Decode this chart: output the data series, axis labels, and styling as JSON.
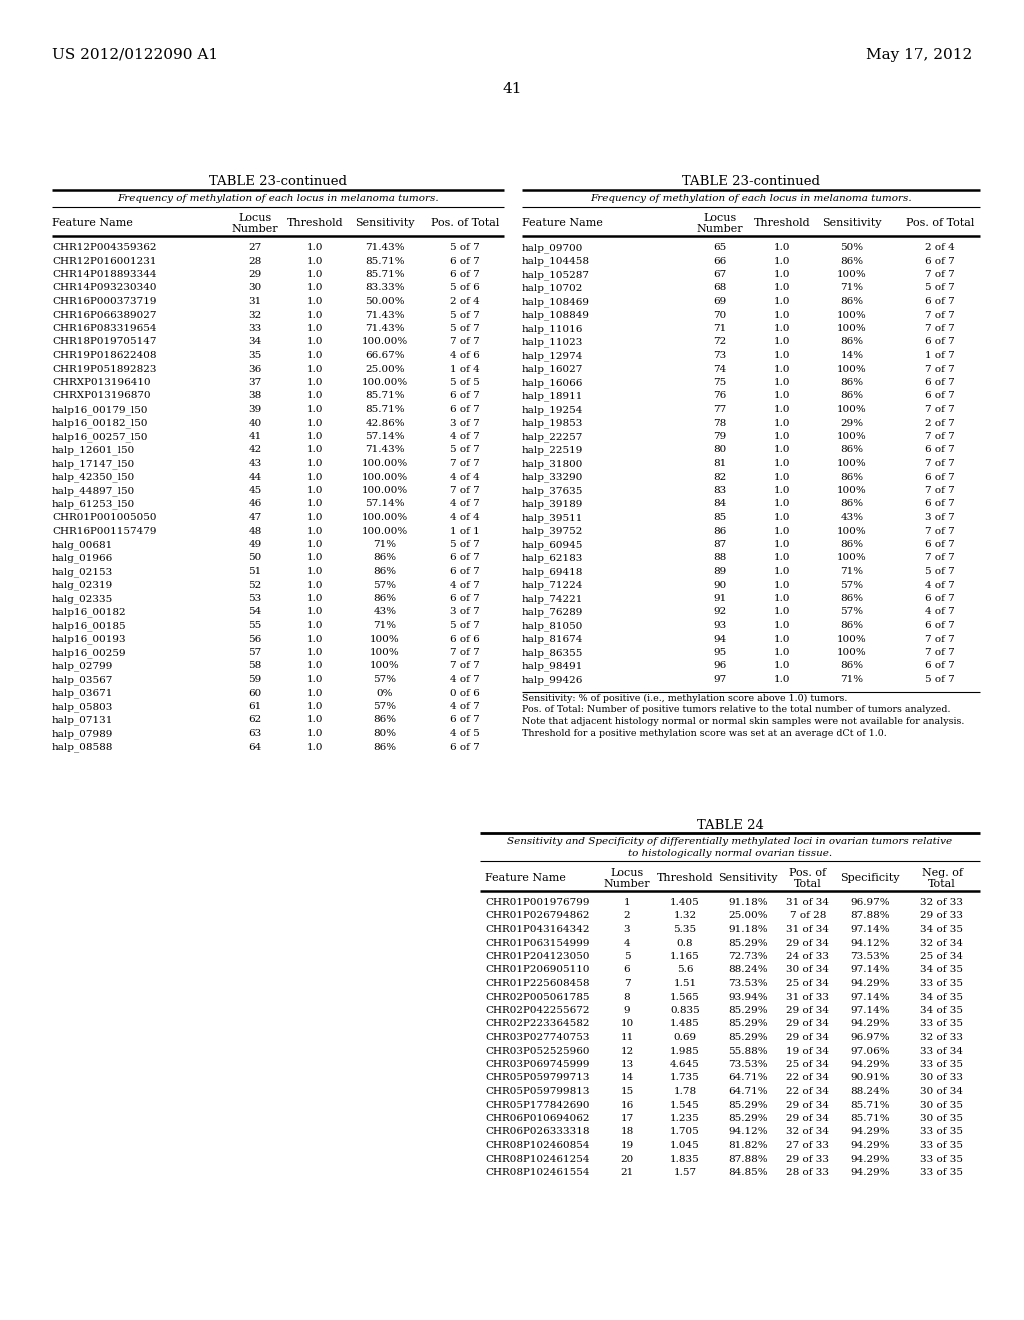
{
  "header_left": "US 2012/0122090 A1",
  "header_right": "May 17, 2012",
  "page_number": "41",
  "table23_title": "TABLE 23-continued",
  "table23_subtitle": "Frequency of methylation of each locus in melanoma tumors.",
  "table23_left": [
    [
      "CHR12P004359362",
      "27",
      "1.0",
      "71.43%",
      "5 of 7"
    ],
    [
      "CHR12P016001231",
      "28",
      "1.0",
      "85.71%",
      "6 of 7"
    ],
    [
      "CHR14P018893344",
      "29",
      "1.0",
      "85.71%",
      "6 of 7"
    ],
    [
      "CHR14P093230340",
      "30",
      "1.0",
      "83.33%",
      "5 of 6"
    ],
    [
      "CHR16P000373719",
      "31",
      "1.0",
      "50.00%",
      "2 of 4"
    ],
    [
      "CHR16P066389027",
      "32",
      "1.0",
      "71.43%",
      "5 of 7"
    ],
    [
      "CHR16P083319654",
      "33",
      "1.0",
      "71.43%",
      "5 of 7"
    ],
    [
      "CHR18P019705147",
      "34",
      "1.0",
      "100.00%",
      "7 of 7"
    ],
    [
      "CHR19P018622408",
      "35",
      "1.0",
      "66.67%",
      "4 of 6"
    ],
    [
      "CHR19P051892823",
      "36",
      "1.0",
      "25.00%",
      "1 of 4"
    ],
    [
      "CHRXP013196410",
      "37",
      "1.0",
      "100.00%",
      "5 of 5"
    ],
    [
      "CHRXP013196870",
      "38",
      "1.0",
      "85.71%",
      "6 of 7"
    ],
    [
      "halp16_00179_l50",
      "39",
      "1.0",
      "85.71%",
      "6 of 7"
    ],
    [
      "halp16_00182_l50",
      "40",
      "1.0",
      "42.86%",
      "3 of 7"
    ],
    [
      "halp16_00257_l50",
      "41",
      "1.0",
      "57.14%",
      "4 of 7"
    ],
    [
      "halp_12601_l50",
      "42",
      "1.0",
      "71.43%",
      "5 of 7"
    ],
    [
      "halp_17147_l50",
      "43",
      "1.0",
      "100.00%",
      "7 of 7"
    ],
    [
      "halp_42350_l50",
      "44",
      "1.0",
      "100.00%",
      "4 of 4"
    ],
    [
      "halp_44897_l50",
      "45",
      "1.0",
      "100.00%",
      "7 of 7"
    ],
    [
      "halp_61253_l50",
      "46",
      "1.0",
      "57.14%",
      "4 of 7"
    ],
    [
      "CHR01P001005050",
      "47",
      "1.0",
      "100.00%",
      "4 of 4"
    ],
    [
      "CHR16P001157479",
      "48",
      "1.0",
      "100.00%",
      "1 of 1"
    ],
    [
      "halg_00681",
      "49",
      "1.0",
      "71%",
      "5 of 7"
    ],
    [
      "halg_01966",
      "50",
      "1.0",
      "86%",
      "6 of 7"
    ],
    [
      "halg_02153",
      "51",
      "1.0",
      "86%",
      "6 of 7"
    ],
    [
      "halg_02319",
      "52",
      "1.0",
      "57%",
      "4 of 7"
    ],
    [
      "halg_02335",
      "53",
      "1.0",
      "86%",
      "6 of 7"
    ],
    [
      "halp16_00182",
      "54",
      "1.0",
      "43%",
      "3 of 7"
    ],
    [
      "halp16_00185",
      "55",
      "1.0",
      "71%",
      "5 of 7"
    ],
    [
      "halp16_00193",
      "56",
      "1.0",
      "100%",
      "6 of 6"
    ],
    [
      "halp16_00259",
      "57",
      "1.0",
      "100%",
      "7 of 7"
    ],
    [
      "halp_02799",
      "58",
      "1.0",
      "100%",
      "7 of 7"
    ],
    [
      "halp_03567",
      "59",
      "1.0",
      "57%",
      "4 of 7"
    ],
    [
      "halp_03671",
      "60",
      "1.0",
      "0%",
      "0 of 6"
    ],
    [
      "halp_05803",
      "61",
      "1.0",
      "57%",
      "4 of 7"
    ],
    [
      "halp_07131",
      "62",
      "1.0",
      "86%",
      "6 of 7"
    ],
    [
      "halp_07989",
      "63",
      "1.0",
      "80%",
      "4 of 5"
    ],
    [
      "halp_08588",
      "64",
      "1.0",
      "86%",
      "6 of 7"
    ]
  ],
  "table23_right": [
    [
      "halp_09700",
      "65",
      "1.0",
      "50%",
      "2 of 4"
    ],
    [
      "halp_104458",
      "66",
      "1.0",
      "86%",
      "6 of 7"
    ],
    [
      "halp_105287",
      "67",
      "1.0",
      "100%",
      "7 of 7"
    ],
    [
      "halp_10702",
      "68",
      "1.0",
      "71%",
      "5 of 7"
    ],
    [
      "halp_108469",
      "69",
      "1.0",
      "86%",
      "6 of 7"
    ],
    [
      "halp_108849",
      "70",
      "1.0",
      "100%",
      "7 of 7"
    ],
    [
      "halp_11016",
      "71",
      "1.0",
      "100%",
      "7 of 7"
    ],
    [
      "halp_11023",
      "72",
      "1.0",
      "86%",
      "6 of 7"
    ],
    [
      "halp_12974",
      "73",
      "1.0",
      "14%",
      "1 of 7"
    ],
    [
      "halp_16027",
      "74",
      "1.0",
      "100%",
      "7 of 7"
    ],
    [
      "halp_16066",
      "75",
      "1.0",
      "86%",
      "6 of 7"
    ],
    [
      "halp_18911",
      "76",
      "1.0",
      "86%",
      "6 of 7"
    ],
    [
      "halp_19254",
      "77",
      "1.0",
      "100%",
      "7 of 7"
    ],
    [
      "halp_19853",
      "78",
      "1.0",
      "29%",
      "2 of 7"
    ],
    [
      "halp_22257",
      "79",
      "1.0",
      "100%",
      "7 of 7"
    ],
    [
      "halp_22519",
      "80",
      "1.0",
      "86%",
      "6 of 7"
    ],
    [
      "halp_31800",
      "81",
      "1.0",
      "100%",
      "7 of 7"
    ],
    [
      "halp_33290",
      "82",
      "1.0",
      "86%",
      "6 of 7"
    ],
    [
      "halp_37635",
      "83",
      "1.0",
      "100%",
      "7 of 7"
    ],
    [
      "halp_39189",
      "84",
      "1.0",
      "86%",
      "6 of 7"
    ],
    [
      "halp_39511",
      "85",
      "1.0",
      "43%",
      "3 of 7"
    ],
    [
      "halp_39752",
      "86",
      "1.0",
      "100%",
      "7 of 7"
    ],
    [
      "halp_60945",
      "87",
      "1.0",
      "86%",
      "6 of 7"
    ],
    [
      "halp_62183",
      "88",
      "1.0",
      "100%",
      "7 of 7"
    ],
    [
      "halp_69418",
      "89",
      "1.0",
      "71%",
      "5 of 7"
    ],
    [
      "halp_71224",
      "90",
      "1.0",
      "57%",
      "4 of 7"
    ],
    [
      "halp_74221",
      "91",
      "1.0",
      "86%",
      "6 of 7"
    ],
    [
      "halp_76289",
      "92",
      "1.0",
      "57%",
      "4 of 7"
    ],
    [
      "halp_81050",
      "93",
      "1.0",
      "86%",
      "6 of 7"
    ],
    [
      "halp_81674",
      "94",
      "1.0",
      "100%",
      "7 of 7"
    ],
    [
      "halp_86355",
      "95",
      "1.0",
      "100%",
      "7 of 7"
    ],
    [
      "halp_98491",
      "96",
      "1.0",
      "86%",
      "6 of 7"
    ],
    [
      "halp_99426",
      "97",
      "1.0",
      "71%",
      "5 of 7"
    ]
  ],
  "table23_footnotes": [
    "Sensitivity: % of positive (i.e., methylation score above 1.0) tumors.",
    "Pos. of Total: Number of positive tumors relative to the total number of tumors analyzed.",
    "Note that adjacent histology normal or normal skin samples were not available for analysis.",
    "Threshold for a positive methylation score was set at an average dCt of 1.0."
  ],
  "table24_title": "TABLE 24",
  "table24_subtitle1": "Sensitivity and Specificity of differentially methylated loci in ovarian tumors relative",
  "table24_subtitle2": "to histologically normal ovarian tissue.",
  "table24_data": [
    [
      "CHR01P001976799",
      "1",
      "1.405",
      "91.18%",
      "31 of 34",
      "96.97%",
      "32 of 33"
    ],
    [
      "CHR01P026794862",
      "2",
      "1.32",
      "25.00%",
      "7 of 28",
      "87.88%",
      "29 of 33"
    ],
    [
      "CHR01P043164342",
      "3",
      "5.35",
      "91.18%",
      "31 of 34",
      "97.14%",
      "34 of 35"
    ],
    [
      "CHR01P063154999",
      "4",
      "0.8",
      "85.29%",
      "29 of 34",
      "94.12%",
      "32 of 34"
    ],
    [
      "CHR01P204123050",
      "5",
      "1.165",
      "72.73%",
      "24 of 33",
      "73.53%",
      "25 of 34"
    ],
    [
      "CHR01P206905110",
      "6",
      "5.6",
      "88.24%",
      "30 of 34",
      "97.14%",
      "34 of 35"
    ],
    [
      "CHR01P225608458",
      "7",
      "1.51",
      "73.53%",
      "25 of 34",
      "94.29%",
      "33 of 35"
    ],
    [
      "CHR02P005061785",
      "8",
      "1.565",
      "93.94%",
      "31 of 33",
      "97.14%",
      "34 of 35"
    ],
    [
      "CHR02P042255672",
      "9",
      "0.835",
      "85.29%",
      "29 of 34",
      "97.14%",
      "34 of 35"
    ],
    [
      "CHR02P223364582",
      "10",
      "1.485",
      "85.29%",
      "29 of 34",
      "94.29%",
      "33 of 35"
    ],
    [
      "CHR03P027740753",
      "11",
      "0.69",
      "85.29%",
      "29 of 34",
      "96.97%",
      "32 of 33"
    ],
    [
      "CHR03P052525960",
      "12",
      "1.985",
      "55.88%",
      "19 of 34",
      "97.06%",
      "33 of 34"
    ],
    [
      "CHR03P069745999",
      "13",
      "4.645",
      "73.53%",
      "25 of 34",
      "94.29%",
      "33 of 35"
    ],
    [
      "CHR05P059799713",
      "14",
      "1.735",
      "64.71%",
      "22 of 34",
      "90.91%",
      "30 of 33"
    ],
    [
      "CHR05P059799813",
      "15",
      "1.78",
      "64.71%",
      "22 of 34",
      "88.24%",
      "30 of 34"
    ],
    [
      "CHR05P177842690",
      "16",
      "1.545",
      "85.29%",
      "29 of 34",
      "85.71%",
      "30 of 35"
    ],
    [
      "CHR06P010694062",
      "17",
      "1.235",
      "85.29%",
      "29 of 34",
      "85.71%",
      "30 of 35"
    ],
    [
      "CHR06P026333318",
      "18",
      "1.705",
      "94.12%",
      "32 of 34",
      "94.29%",
      "33 of 35"
    ],
    [
      "CHR08P102460854",
      "19",
      "1.045",
      "81.82%",
      "27 of 33",
      "94.29%",
      "33 of 35"
    ],
    [
      "CHR08P102461254",
      "20",
      "1.835",
      "87.88%",
      "29 of 33",
      "94.29%",
      "33 of 35"
    ],
    [
      "CHR08P102461554",
      "21",
      "1.57",
      "84.85%",
      "28 of 33",
      "94.29%",
      "33 of 35"
    ]
  ]
}
